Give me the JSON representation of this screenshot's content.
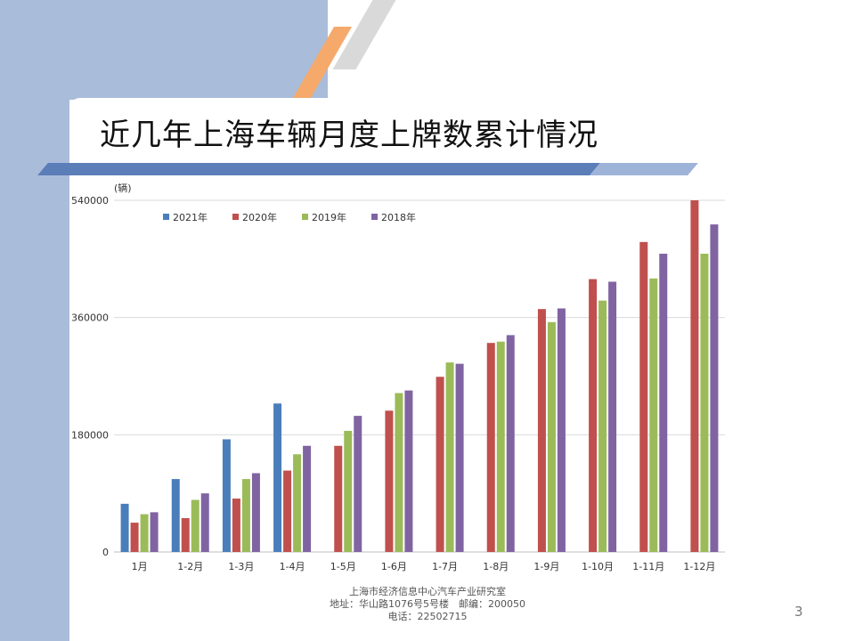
{
  "slide": {
    "title": "近几年上海车辆月度上牌数累计情况",
    "footer_lines": [
      "上海市经济信息中心汽车产业研究室",
      "地址：华山路1076号5号楼　邮编：200050",
      "电话：22502715"
    ],
    "page_number": "3"
  },
  "colors": {
    "background_band": "#a9bcd9",
    "title_bar": "#5b7db8",
    "accent_orange": "#f5a96b"
  },
  "chart_data": {
    "type": "bar",
    "unit_label": "(辆)",
    "categories": [
      "1月",
      "1-2月",
      "1-3月",
      "1-4月",
      "1-5月",
      "1-6月",
      "1-7月",
      "1-8月",
      "1-9月",
      "1-10月",
      "1-11月",
      "1-12月"
    ],
    "ylim": [
      0,
      540000
    ],
    "yticks": [
      0,
      180000,
      360000,
      540000
    ],
    "grid": true,
    "legend_position": "top-left",
    "series": [
      {
        "name": "2021年",
        "color": "#4a7ebb",
        "values": [
          74000,
          112000,
          173000,
          228000,
          null,
          null,
          null,
          null,
          null,
          null,
          null,
          null
        ]
      },
      {
        "name": "2020年",
        "color": "#c0504d",
        "values": [
          45000,
          52000,
          82000,
          125000,
          163000,
          217000,
          269000,
          321000,
          373000,
          419000,
          476000,
          540000
        ]
      },
      {
        "name": "2019年",
        "color": "#9bbb59",
        "values": [
          58000,
          80000,
          112000,
          150000,
          186000,
          244000,
          291000,
          323000,
          353000,
          386000,
          420000,
          458000
        ]
      },
      {
        "name": "2018年",
        "color": "#8064a2",
        "values": [
          61000,
          90000,
          121000,
          163000,
          209000,
          248000,
          289000,
          333000,
          374000,
          415000,
          458000,
          503000
        ]
      }
    ]
  }
}
